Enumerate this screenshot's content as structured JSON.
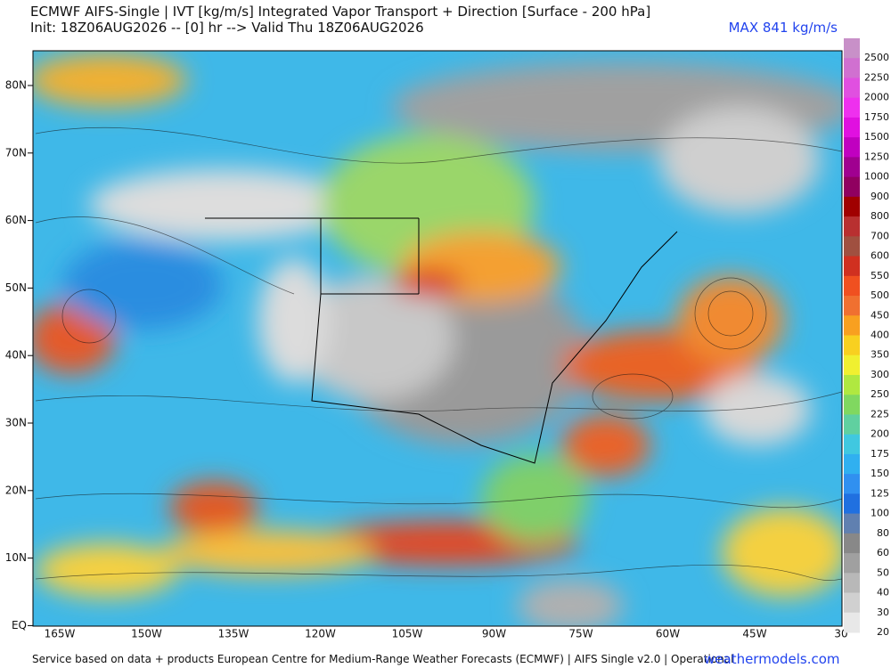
{
  "header": {
    "title": "ECMWF AIFS-Single | IVT [kg/m/s] Integrated Vapor Transport + Direction [Surface - 200 hPa]",
    "init": "Init: 18Z06AUG2026 -- [0] hr --> Valid Thu 18Z06AUG2026",
    "max": "MAX 841 kg/m/s"
  },
  "latitude_labels": [
    "80N",
    "70N",
    "60N",
    "50N",
    "40N",
    "30N",
    "20N",
    "10N",
    "EQ"
  ],
  "longitude_labels": [
    "165W",
    "150W",
    "135W",
    "120W",
    "105W",
    "90W",
    "75W",
    "60W",
    "45W",
    "30"
  ],
  "colorbar": {
    "labels": [
      2500,
      2250,
      2000,
      1750,
      1500,
      1250,
      1000,
      900,
      800,
      700,
      600,
      550,
      500,
      450,
      400,
      350,
      300,
      250,
      225,
      200,
      175,
      150,
      125,
      100,
      80,
      60,
      50,
      40,
      30,
      20
    ],
    "colors": [
      "#c890c8",
      "#d070d0",
      "#e050e0",
      "#ee30ee",
      "#e010e0",
      "#c000c0",
      "#a00090",
      "#900060",
      "#a00000",
      "#b83030",
      "#a05040",
      "#d03020",
      "#f05020",
      "#f07030",
      "#f8a020",
      "#f8d020",
      "#f0f030",
      "#b0e840",
      "#80d860",
      "#60d0a0",
      "#40c8e0",
      "#30b0f0",
      "#3090f0",
      "#2070e0",
      "#6080b0",
      "#888888",
      "#a0a0a0",
      "#b8b8b8",
      "#d0d0d0",
      "#e8e8e8"
    ]
  },
  "footer": {
    "source": "Service based on data + products European Centre for Medium-Range Weather Forecasts (ECMWF) | AIFS Single v2.0 | Operational",
    "brand": "weathermodels.com"
  }
}
